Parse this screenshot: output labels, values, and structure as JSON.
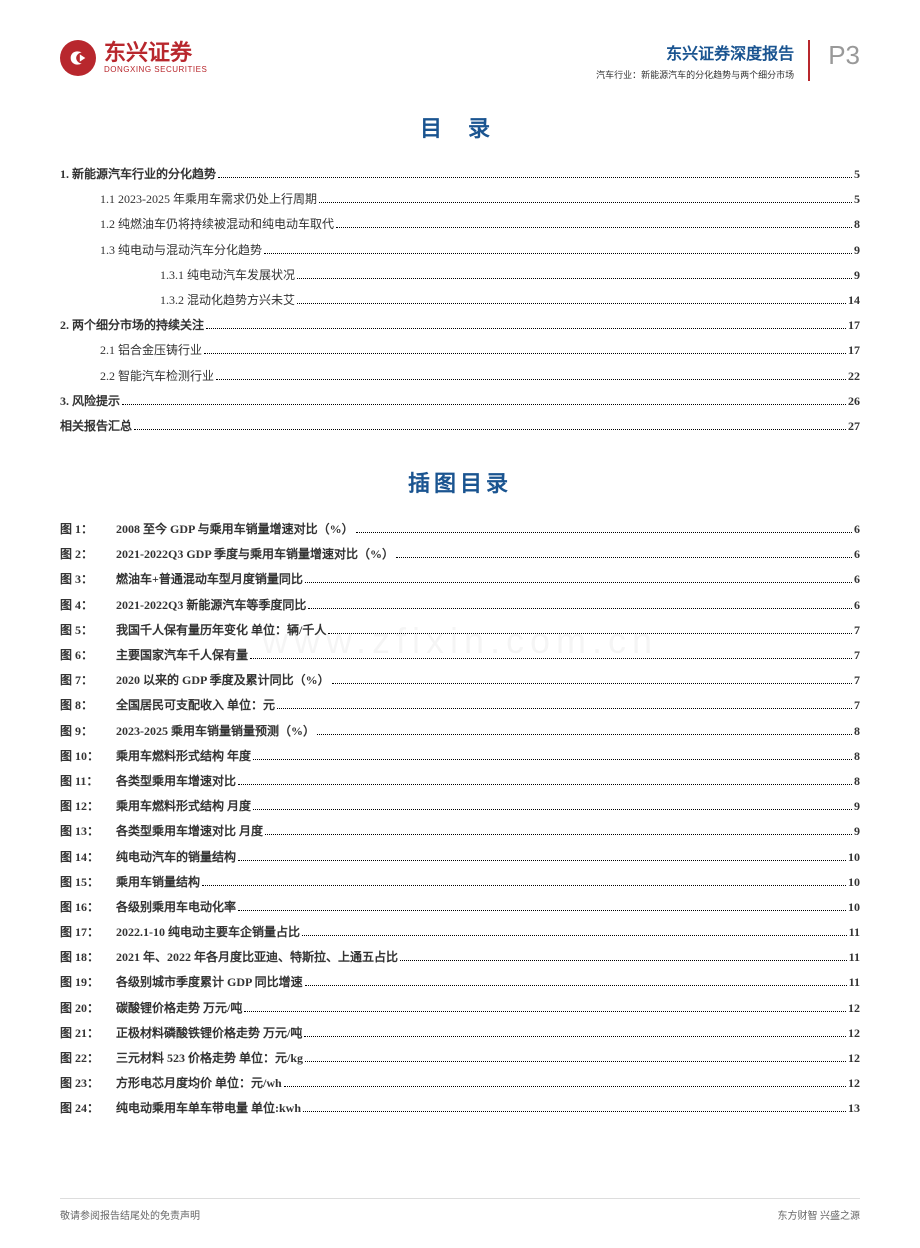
{
  "header": {
    "logo_cn": "东兴证券",
    "logo_en": "DONGXING SECURITIES",
    "report_title": "东兴证券深度报告",
    "report_subtitle": "汽车行业：新能源汽车的分化趋势与两个细分市场",
    "page_num": "P3"
  },
  "toc_title": "目  录",
  "figures_title": "插图目录",
  "toc": [
    {
      "label": "1. 新能源汽车行业的分化趋势",
      "page": "5",
      "indent": 0,
      "bold": true
    },
    {
      "label": "1.1 2023-2025 年乘用车需求仍处上行周期",
      "page": "5",
      "indent": 1,
      "bold": false
    },
    {
      "label": "1.2 纯燃油车仍将持续被混动和纯电动车取代",
      "page": "8",
      "indent": 1,
      "bold": false
    },
    {
      "label": "1.3 纯电动与混动汽车分化趋势",
      "page": "9",
      "indent": 1,
      "bold": false
    },
    {
      "label": "1.3.1 纯电动汽车发展状况",
      "page": "9",
      "indent": 2,
      "bold": false
    },
    {
      "label": "1.3.2 混动化趋势方兴未艾",
      "page": "14",
      "indent": 2,
      "bold": false
    },
    {
      "label": "2. 两个细分市场的持续关注",
      "page": "17",
      "indent": 0,
      "bold": true
    },
    {
      "label": "2.1 铝合金压铸行业",
      "page": "17",
      "indent": 1,
      "bold": false
    },
    {
      "label": "2.2 智能汽车检测行业",
      "page": "22",
      "indent": 1,
      "bold": false
    },
    {
      "label": "3. 风险提示",
      "page": "26",
      "indent": 0,
      "bold": true
    },
    {
      "label": "相关报告汇总",
      "page": "27",
      "indent": 0,
      "bold": true
    }
  ],
  "figures": [
    {
      "prefix": "图 1：",
      "label": "2008 至今 GDP 与乘用车销量增速对比（%）",
      "page": "6"
    },
    {
      "prefix": "图 2：",
      "label": "2021-2022Q3 GDP 季度与乘用车销量增速对比（%）",
      "page": "6"
    },
    {
      "prefix": "图 3：",
      "label": "燃油车+普通混动车型月度销量同比",
      "page": "6"
    },
    {
      "prefix": "图 4：",
      "label": "2021-2022Q3 新能源汽车等季度同比",
      "page": "6"
    },
    {
      "prefix": "图 5：",
      "label": "我国千人保有量历年变化    单位：辆/千人",
      "page": "7"
    },
    {
      "prefix": "图 6：",
      "label": "主要国家汽车千人保有量",
      "page": "7"
    },
    {
      "prefix": "图 7：",
      "label": "2020 以来的 GDP 季度及累计同比（%）",
      "page": "7"
    },
    {
      "prefix": "图 8：",
      "label": "全国居民可支配收入    单位：元",
      "page": "7"
    },
    {
      "prefix": "图 9：",
      "label": "2023-2025 乘用车销量销量预测（%）",
      "page": "8"
    },
    {
      "prefix": "图 10：",
      "label": "乘用车燃料形式结构  年度",
      "page": "8"
    },
    {
      "prefix": "图 11：",
      "label": "各类型乘用车增速对比",
      "page": "8"
    },
    {
      "prefix": "图 12：",
      "label": "乘用车燃料形式结构  月度",
      "page": "9"
    },
    {
      "prefix": "图 13：",
      "label": "各类型乘用车增速对比  月度",
      "page": "9"
    },
    {
      "prefix": "图 14：",
      "label": "纯电动汽车的销量结构",
      "page": "10"
    },
    {
      "prefix": "图 15：",
      "label": "乘用车销量结构",
      "page": "10"
    },
    {
      "prefix": "图 16：",
      "label": "各级别乘用车电动化率",
      "page": "10"
    },
    {
      "prefix": "图 17：",
      "label": "2022.1-10 纯电动主要车企销量占比",
      "page": "11"
    },
    {
      "prefix": "图 18：",
      "label": "2021 年、2022 年各月度比亚迪、特斯拉、上通五占比",
      "page": "11"
    },
    {
      "prefix": "图 19：",
      "label": "各级别城市季度累计 GDP 同比增速",
      "page": "11"
    },
    {
      "prefix": "图 20：",
      "label": "碳酸锂价格走势    万元/吨",
      "page": "12"
    },
    {
      "prefix": "图 21：",
      "label": "正极材料磷酸铁锂价格走势    万元/吨",
      "page": "12"
    },
    {
      "prefix": "图 22：",
      "label": "三元材料 523 价格走势  单位：元/kg",
      "page": "12"
    },
    {
      "prefix": "图 23：",
      "label": "方形电芯月度均价  单位：元/wh",
      "page": "12"
    },
    {
      "prefix": "图 24：",
      "label": "纯电动乘用车单车带电量    单位:kwh",
      "page": "13"
    }
  ],
  "footer": {
    "left": "敬请参阅报告结尾处的免责声明",
    "right": "东方财智 兴盛之源"
  },
  "watermark": "www.zfixin.com.cn"
}
